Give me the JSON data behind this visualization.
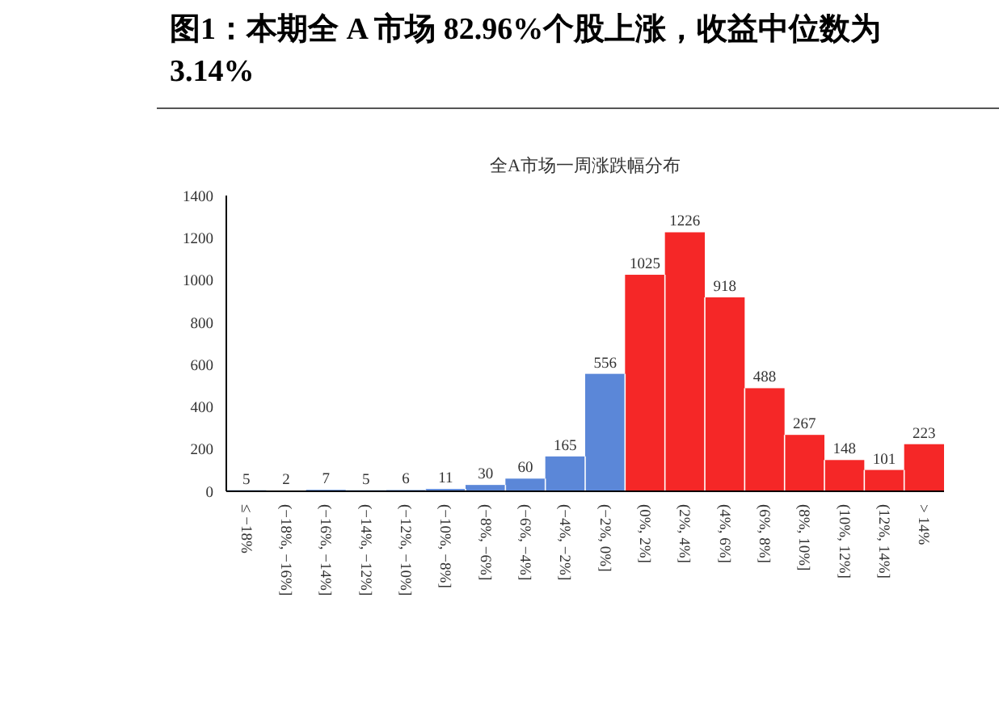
{
  "chart_data": {
    "type": "bar",
    "title": "图1：本期全 A 市场 82.96%个股上涨，收益中位数为 3.14%",
    "subtitle": "全A市场一周涨跌幅分布",
    "categories": [
      "≤ −18%",
      "(−18%, −16%]",
      "(−16%, −14%]",
      "(−14%, −12%]",
      "(−12%, −10%]",
      "(−10%, −8%]",
      "(−8%, −6%]",
      "(−6%, −4%]",
      "(−4%, −2%]",
      "(−2%, 0%]",
      "(0%, 2%]",
      "(2%, 4%]",
      "(4%, 6%]",
      "(6%, 8%]",
      "(8%, 10%]",
      "(10%, 12%]",
      "(12%, 14%]",
      "> 14%"
    ],
    "values": [
      5,
      2,
      7,
      5,
      6,
      11,
      30,
      60,
      165,
      556,
      1025,
      1226,
      918,
      488,
      267,
      148,
      101,
      223
    ],
    "colors": [
      "#5b87d8",
      "#5b87d8",
      "#5b87d8",
      "#5b87d8",
      "#5b87d8",
      "#5b87d8",
      "#5b87d8",
      "#5b87d8",
      "#5b87d8",
      "#5b87d8",
      "#f52727",
      "#f52727",
      "#f52727",
      "#f52727",
      "#f52727",
      "#f52727",
      "#f52727",
      "#f52727"
    ],
    "ylim": [
      0,
      1400
    ],
    "yticks": [
      0,
      200,
      400,
      600,
      800,
      1000,
      1200,
      1400
    ],
    "data_labels": true,
    "grid": false
  }
}
